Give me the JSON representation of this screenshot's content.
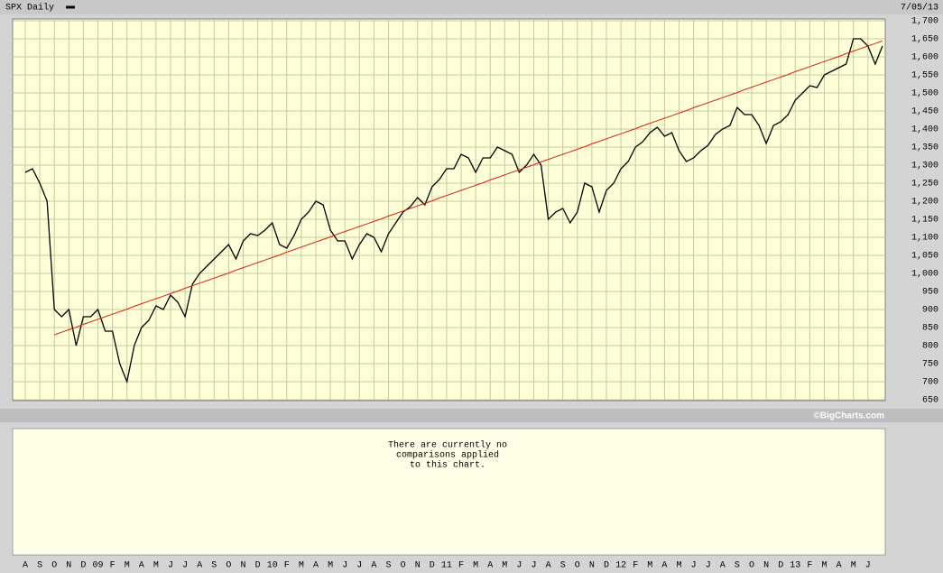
{
  "chart_data": {
    "type": "line",
    "date": "7/05/13",
    "credit": "©BigCharts.com",
    "comparison_note": [
      "There are currently no",
      "comparisons applied",
      "to this chart."
    ],
    "categories": [
      "A",
      null,
      "S",
      null,
      "O",
      null,
      "N",
      null,
      "D",
      null,
      "09",
      null,
      "F",
      null,
      "M",
      null,
      "A",
      null,
      "M",
      null,
      "J",
      null,
      "J",
      null,
      "A",
      null,
      "S",
      null,
      "O",
      null,
      "N",
      null,
      "D",
      null,
      "10",
      null,
      "F",
      null,
      "M",
      null,
      "A",
      null,
      "M",
      null,
      "J",
      null,
      "J",
      null,
      "A",
      null,
      "S",
      null,
      "O",
      null,
      "N",
      null,
      "D",
      null,
      "11",
      null,
      "F",
      null,
      "M",
      null,
      "A",
      null,
      "M",
      null,
      "J",
      null,
      "J",
      null,
      "A",
      null,
      "S",
      null,
      "O",
      null,
      "N",
      null,
      "D",
      null,
      "12",
      null,
      "F",
      null,
      "M",
      null,
      "A",
      null,
      "M",
      null,
      "J",
      null,
      "J",
      null,
      "A",
      null,
      "S",
      null,
      "O",
      null,
      "N",
      null,
      "D",
      null,
      "13",
      null,
      "F",
      null,
      "M",
      null,
      "A",
      null,
      "M",
      null,
      "J",
      null,
      null
    ],
    "series": [
      {
        "name": "SPX Daily",
        "color": "#000000",
        "values": [
          1280,
          1290,
          1250,
          1200,
          900,
          880,
          900,
          800,
          880,
          880,
          900,
          840,
          840,
          750,
          700,
          800,
          850,
          870,
          910,
          900,
          940,
          920,
          880,
          970,
          1000,
          1020,
          1040,
          1060,
          1080,
          1040,
          1090,
          1110,
          1105,
          1120,
          1140,
          1080,
          1070,
          1105,
          1150,
          1170,
          1200,
          1190,
          1120,
          1090,
          1090,
          1040,
          1080,
          1110,
          1100,
          1060,
          1110,
          1140,
          1170,
          1185,
          1210,
          1190,
          1240,
          1260,
          1290,
          1290,
          1330,
          1320,
          1280,
          1320,
          1320,
          1350,
          1340,
          1330,
          1280,
          1300,
          1330,
          1300,
          1150,
          1170,
          1180,
          1140,
          1170,
          1250,
          1240,
          1170,
          1230,
          1250,
          1290,
          1310,
          1350,
          1365,
          1390,
          1405,
          1380,
          1390,
          1340,
          1310,
          1320,
          1340,
          1355,
          1385,
          1400,
          1410,
          1460,
          1440,
          1440,
          1410,
          1360,
          1410,
          1420,
          1440,
          1480,
          1500,
          1520,
          1515,
          1550,
          1560,
          1570,
          1580,
          1650,
          1650,
          1630,
          1580,
          1630
        ]
      },
      {
        "color": "#e02010",
        "values": [
          null,
          null,
          null,
          null,
          830,
          837,
          844,
          851,
          859,
          866,
          873,
          880,
          887,
          894,
          901,
          909,
          916,
          923,
          930,
          937,
          944,
          951,
          959,
          966,
          973,
          980,
          987,
          994,
          1001,
          1009,
          1016,
          1023,
          1030,
          1037,
          1044,
          1051,
          1059,
          1066,
          1073,
          1080,
          1087,
          1094,
          1101,
          1109,
          1116,
          1123,
          1130,
          1137,
          1144,
          1151,
          1159,
          1166,
          1173,
          1180,
          1187,
          1194,
          1201,
          1209,
          1216,
          1223,
          1230,
          1237,
          1244,
          1251,
          1259,
          1266,
          1273,
          1280,
          1287,
          1294,
          1301,
          1309,
          1316,
          1323,
          1330,
          1337,
          1344,
          1351,
          1359,
          1366,
          1373,
          1380,
          1387,
          1394,
          1401,
          1409,
          1416,
          1423,
          1430,
          1437,
          1444,
          1451,
          1459,
          1466,
          1473,
          1480,
          1487,
          1494,
          1501,
          1509,
          1516,
          1523,
          1530,
          1537,
          1544,
          1551,
          1559,
          1566,
          1573,
          1580,
          1587,
          1594,
          1601,
          1609,
          1616,
          1623,
          1630,
          1637,
          1644
        ]
      }
    ],
    "ylim": [
      650,
      1700
    ],
    "yticks": [
      650,
      700,
      750,
      800,
      850,
      900,
      950,
      {
        "value": 1000,
        "label": "1,000"
      },
      {
        "value": 1050,
        "label": "1,050"
      },
      {
        "value": 1100,
        "label": "1,100"
      },
      {
        "value": 1150,
        "label": "1,150"
      },
      {
        "value": 1200,
        "label": "1,200"
      },
      {
        "value": 1250,
        "label": "1,250"
      },
      {
        "value": 1300,
        "label": "1,300"
      },
      {
        "value": 1350,
        "label": "1,350"
      },
      {
        "value": 1400,
        "label": "1,400"
      },
      {
        "value": 1450,
        "label": "1,450"
      },
      {
        "value": 1500,
        "label": "1,500"
      },
      {
        "value": 1550,
        "label": "1,550"
      },
      {
        "value": 1600,
        "label": "1,600"
      },
      {
        "value": 1650,
        "label": "1,650"
      },
      {
        "value": 1700,
        "label": "1,700"
      }
    ],
    "grid": true
  }
}
